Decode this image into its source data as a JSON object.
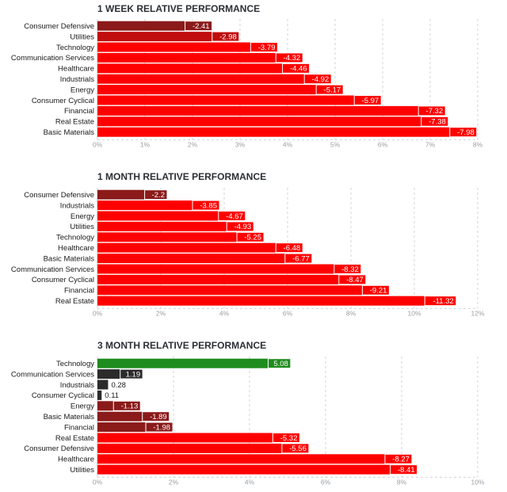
{
  "chart_data": [
    {
      "type": "bar",
      "orientation": "horizontal",
      "title": "1 WEEK RELATIVE PERFORMANCE",
      "categories": [
        "Consumer Defensive",
        "Utilities",
        "Technology",
        "Communication Services",
        "Healthcare",
        "Industrials",
        "Energy",
        "Consumer Cyclical",
        "Financial",
        "Real Estate",
        "Basic Materials"
      ],
      "values": [
        -2.41,
        -2.98,
        -3.79,
        -4.32,
        -4.46,
        -4.92,
        -5.17,
        -5.97,
        -7.32,
        -7.38,
        -7.98
      ],
      "value_labels": [
        "-2.41",
        "-2.98",
        "-3.79",
        "-4.32",
        "-4.46",
        "-4.92",
        "-5.17",
        "-5.97",
        "-7.32",
        "-7.38",
        "-7.98"
      ],
      "xlim": [
        0,
        8
      ],
      "ticks": [
        0,
        1,
        2,
        3,
        4,
        5,
        6,
        7,
        8
      ],
      "tick_labels": [
        "0%",
        "1%",
        "2%",
        "3%",
        "4%",
        "5%",
        "6%",
        "7%",
        "8%"
      ],
      "bar_scale": "absolute value",
      "colors": {
        "negative_strong": "#ff0000",
        "negative_weak": "#8b1a1a",
        "positive": "#1e8c1e",
        "neutral": "#2b2b2b"
      }
    },
    {
      "type": "bar",
      "orientation": "horizontal",
      "title": "1 MONTH RELATIVE PERFORMANCE",
      "categories": [
        "Consumer Defensive",
        "Industrials",
        "Energy",
        "Utilities",
        "Technology",
        "Healthcare",
        "Basic Materials",
        "Communication Services",
        "Consumer Cyclical",
        "Financial",
        "Real Estate"
      ],
      "values": [
        -2.2,
        -3.85,
        -4.67,
        -4.93,
        -5.25,
        -6.48,
        -6.77,
        -8.32,
        -8.47,
        -9.21,
        -11.32
      ],
      "value_labels": [
        "-2.2",
        "-3.85",
        "-4.67",
        "-4.93",
        "-5.25",
        "-6.48",
        "-6.77",
        "-8.32",
        "-8.47",
        "-9.21",
        "-11.32"
      ],
      "xlim": [
        0,
        12
      ],
      "ticks": [
        0,
        2,
        4,
        6,
        8,
        10,
        12
      ],
      "tick_labels": [
        "0%",
        "2%",
        "4%",
        "6%",
        "8%",
        "10%",
        "12%"
      ],
      "bar_scale": "absolute value",
      "colors": {
        "negative_strong": "#ff0000",
        "negative_weak": "#8b1a1a",
        "positive": "#1e8c1e",
        "neutral": "#2b2b2b"
      }
    },
    {
      "type": "bar",
      "orientation": "horizontal",
      "title": "3 MONTH RELATIVE PERFORMANCE",
      "categories": [
        "Technology",
        "Communication Services",
        "Industrials",
        "Consumer Cyclical",
        "Energy",
        "Basic Materials",
        "Financial",
        "Real Estate",
        "Consumer Defensive",
        "Healthcare",
        "Utilities"
      ],
      "values": [
        5.08,
        1.19,
        0.28,
        0.11,
        -1.13,
        -1.89,
        -1.98,
        -5.32,
        -5.56,
        -8.27,
        -8.41
      ],
      "value_labels": [
        "5.08",
        "1.19",
        "0.28",
        "0.11",
        "-1.13",
        "-1.89",
        "-1.98",
        "-5.32",
        "-5.56",
        "-8.27",
        "-8.41"
      ],
      "xlim": [
        0,
        10
      ],
      "ticks": [
        0,
        2,
        4,
        6,
        8,
        10
      ],
      "tick_labels": [
        "0%",
        "2%",
        "4%",
        "6%",
        "8%",
        "10%"
      ],
      "bar_scale": "absolute value",
      "colors": {
        "negative_strong": "#ff0000",
        "negative_weak": "#8b1a1a",
        "positive": "#1e8c1e",
        "neutral": "#2b2b2b"
      }
    }
  ]
}
